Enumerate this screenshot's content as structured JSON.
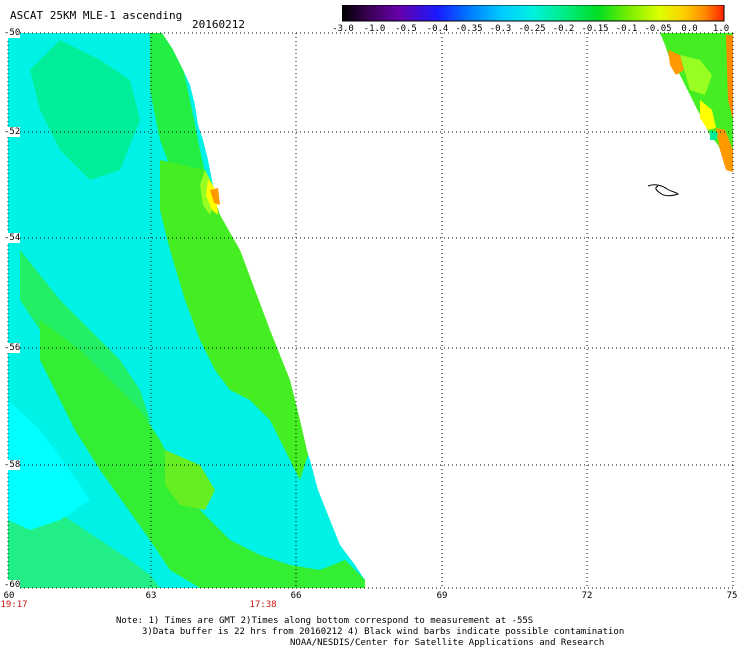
{
  "header": {
    "title": "ASCAT 25KM MLE-1 ascending",
    "date": "20160212"
  },
  "colorbar": {
    "labels": [
      "-3.0",
      "-1.0",
      "-0.5",
      "-0.4",
      "-0.35",
      "-0.3",
      "-0.25",
      "-0.2",
      "-0.15",
      "-0.1",
      "-0.05",
      "0.0",
      "1.0"
    ],
    "colors": [
      "#000000",
      "#3a0055",
      "#6600aa",
      "#1a1aff",
      "#0066ff",
      "#00aaff",
      "#00e5e5",
      "#00ee99",
      "#00dd22",
      "#66ee00",
      "#ccff00",
      "#ffdd00",
      "#ff8800",
      "#ff2200"
    ]
  },
  "map": {
    "lat_labels": [
      "-50",
      "-52",
      "-54",
      "-56",
      "-58",
      "-60"
    ],
    "lon_labels": [
      "60",
      "63",
      "66",
      "69",
      "72",
      "75"
    ],
    "lat_range": [
      -60,
      -50
    ],
    "lon_range": [
      60,
      75
    ],
    "grid": true,
    "swath_colors": {
      "cyan": "#00ffff",
      "aqua": "#00f0d8",
      "mint": "#00ee99",
      "green": "#22ee22",
      "lime": "#88ff00",
      "yellow": "#ffff00",
      "orange": "#ff9900"
    }
  },
  "times": {
    "left": "19:17",
    "middle": "17:38"
  },
  "footer": {
    "note1": "Note: 1) Times are GMT 2)Times along bottom correspond to measurement at -55S",
    "note2": "3)Data buffer is 22 hrs from 20160212 4) Black wind barbs indicate possible contamination",
    "credit": "NOAA/NESDIS/Center for Satellite Applications and Research"
  }
}
